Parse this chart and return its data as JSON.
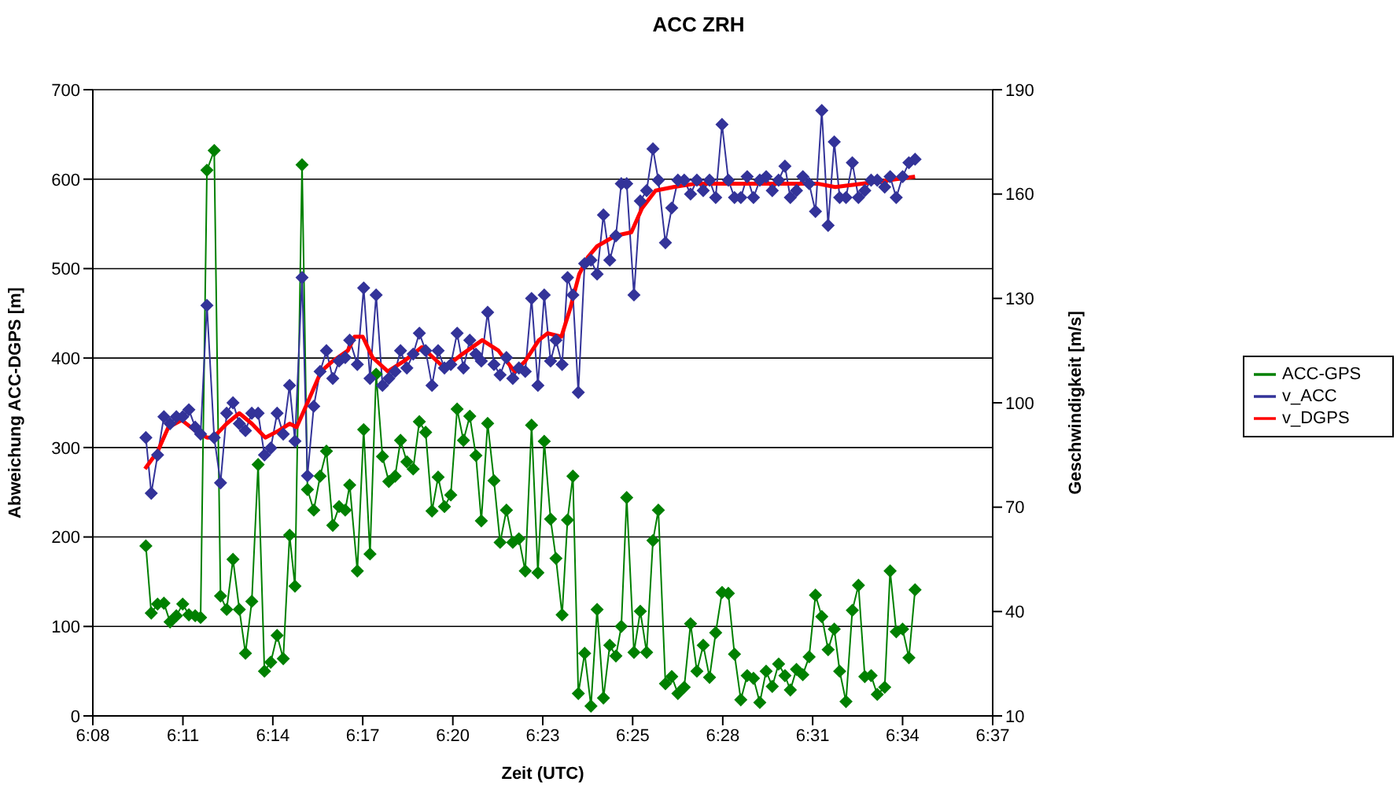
{
  "chart_data": {
    "type": "line",
    "title": "ACC ZRH",
    "xlabel": "Zeit (UTC)",
    "ylabel": "Abweichung ACC-DGPS [m]",
    "y2label": "Geschwindigkeit [m/s]",
    "x": [
      6.1618,
      6.1647,
      6.1681,
      6.1715,
      6.1748,
      6.1782,
      6.1816,
      6.1849,
      6.1883,
      6.1912,
      6.1946,
      6.1985,
      6.2019,
      6.2052,
      6.2086,
      6.212,
      6.2153,
      6.2187,
      6.2221,
      6.2255,
      6.2289,
      6.2323,
      6.2356,
      6.239,
      6.2419,
      6.2457,
      6.2486,
      6.252,
      6.2554,
      6.2588,
      6.2622,
      6.2656,
      6.2689,
      6.2713,
      6.2754,
      6.2788,
      6.2822,
      6.2855,
      6.2889,
      6.2923,
      6.2957,
      6.2986,
      6.302,
      6.3054,
      6.3087,
      6.3121,
      6.3155,
      6.3188,
      6.3222,
      6.3256,
      6.329,
      6.3324,
      6.3358,
      6.3391,
      6.342,
      6.3454,
      6.3488,
      6.3521,
      6.3555,
      6.3589,
      6.3622,
      6.3656,
      6.369,
      6.3724,
      6.3758,
      6.3792,
      6.3821,
      6.3854,
      6.3883,
      6.3912,
      6.3941,
      6.3975,
      6.4009,
      6.4042,
      6.4076,
      6.411,
      6.4143,
      6.4172,
      6.4201,
      6.424,
      6.4274,
      6.4308,
      6.4342,
      6.4371,
      6.4409,
      6.4443,
      6.4476,
      6.451,
      6.4544,
      6.4578,
      6.4612,
      6.4646,
      6.4679,
      6.4713,
      6.4747,
      6.478,
      6.4814,
      6.4848,
      6.4882,
      6.4916,
      6.495,
      6.4983,
      6.5017,
      6.5051,
      6.508,
      6.5113,
      6.5147,
      6.5181,
      6.5215,
      6.5249,
      6.5283,
      6.5316,
      6.5345,
      6.5379,
      6.5413,
      6.5446,
      6.548,
      6.5514,
      6.5547,
      6.5587,
      6.5616,
      6.5649,
      6.5683,
      6.5717,
      6.575
    ],
    "series": [
      {
        "name": "ACC-GPS",
        "color": "#008000",
        "marker": "diamond",
        "values": [
          190,
          115,
          125,
          126,
          105,
          112,
          125,
          113,
          112,
          110,
          610,
          632,
          134,
          119,
          175,
          119,
          70,
          128,
          281,
          50,
          60,
          90,
          64,
          202,
          145,
          616,
          253,
          230,
          268,
          296,
          213,
          234,
          230,
          258,
          162,
          320,
          181,
          382,
          290,
          262,
          268,
          308,
          284,
          276,
          329,
          317,
          229,
          267,
          234,
          247,
          343,
          308,
          335,
          291,
          218,
          327,
          263,
          194,
          230,
          194,
          198,
          162,
          325,
          160,
          307,
          220,
          176,
          113,
          219,
          268,
          25,
          70,
          11,
          119,
          20,
          79,
          67,
          100,
          244,
          71,
          117,
          71,
          196,
          230,
          36,
          44,
          25,
          32,
          103,
          50,
          79,
          43,
          93,
          138,
          137,
          69,
          18,
          45,
          42,
          15,
          50,
          33,
          58,
          45,
          29,
          52,
          46,
          66,
          135,
          111,
          74,
          97,
          50,
          16,
          118,
          146,
          44,
          45,
          24,
          32,
          162,
          94,
          97,
          65,
          141
        ]
      },
      {
        "name": "v_ACC",
        "axis": "y2",
        "color": "#333399",
        "marker": "diamond",
        "values": [
          90,
          74,
          85,
          96,
          94,
          96,
          96,
          98,
          93,
          91,
          128,
          90,
          77,
          97,
          100,
          94,
          92,
          97,
          97,
          85,
          87,
          97,
          91,
          105,
          89,
          136,
          79,
          99,
          109,
          115,
          107,
          112,
          113,
          118,
          111,
          133,
          107,
          131,
          105,
          107,
          109,
          115,
          110,
          114,
          120,
          115,
          105,
          115,
          110,
          111,
          120,
          110,
          118,
          114,
          112,
          126,
          111,
          108,
          113,
          107,
          110,
          109,
          130,
          105,
          131,
          112,
          118,
          111,
          136,
          131,
          103,
          140,
          141,
          137,
          154,
          141,
          148,
          163,
          163,
          131,
          158,
          161,
          173,
          164,
          146,
          156,
          164,
          164,
          160,
          164,
          161,
          164,
          159,
          180,
          164,
          159,
          159,
          165,
          159,
          164,
          165,
          161,
          164,
          168,
          159,
          161,
          165,
          163,
          155,
          184,
          151,
          175,
          159,
          159,
          169,
          159,
          161,
          164,
          164,
          162,
          165,
          159,
          165,
          169,
          170
        ]
      },
      {
        "name": "v_DGPS",
        "axis": "y2",
        "color": "#ff0000",
        "marker": "none",
        "x": [
          6.1613,
          6.1681,
          6.1739,
          6.1811,
          6.1883,
          6.1946,
          6.198,
          6.2052,
          6.212,
          6.2187,
          6.226,
          6.2332,
          6.239,
          6.2428,
          6.2486,
          6.2559,
          6.2622,
          6.2703,
          6.2739,
          6.2783,
          6.2836,
          6.2918,
          6.3005,
          6.3101,
          6.3222,
          6.3318,
          6.3425,
          6.3512,
          6.3599,
          6.3656,
          6.3729,
          6.3777,
          6.385,
          6.3897,
          6.3946,
          6.3994,
          6.4042,
          6.4139,
          6.4226,
          6.4284,
          6.4356,
          6.4452,
          6.4573,
          6.4766,
          6.4887,
          6.508,
          6.5225,
          6.5321,
          6.5466,
          6.561,
          6.575
        ],
        "values": [
          81,
          86,
          93,
          95,
          92,
          90,
          90,
          94,
          97,
          94,
          90,
          92,
          94,
          93,
          100,
          109,
          112,
          115,
          119,
          119,
          113,
          109,
          112,
          116,
          110,
          114,
          118,
          115,
          109,
          112,
          118,
          120,
          119,
          127,
          137,
          142,
          145,
          148,
          149,
          156,
          161,
          162,
          163,
          163,
          163,
          163,
          163,
          162,
          163,
          164,
          165
        ]
      }
    ],
    "xlim": [
      6.1333,
      6.6167
    ],
    "xticks": [
      {
        "value": 6.1333,
        "label": "6:08"
      },
      {
        "value": 6.1817,
        "label": "6:11"
      },
      {
        "value": 6.23,
        "label": "6:14"
      },
      {
        "value": 6.2783,
        "label": "6:17"
      },
      {
        "value": 6.3267,
        "label": "6:20"
      },
      {
        "value": 6.375,
        "label": "6:23"
      },
      {
        "value": 6.4233,
        "label": "6:25"
      },
      {
        "value": 6.4717,
        "label": "6:28"
      },
      {
        "value": 6.52,
        "label": "6:31"
      },
      {
        "value": 6.5683,
        "label": "6:34"
      },
      {
        "value": 6.6167,
        "label": "6:37"
      }
    ],
    "ylim": [
      0,
      700
    ],
    "yticks": [
      0,
      100,
      200,
      300,
      400,
      500,
      600,
      700
    ],
    "y2lim": [
      10,
      190
    ],
    "y2ticks": [
      10,
      40,
      70,
      100,
      130,
      160,
      190
    ],
    "grid": "y",
    "legend": "right"
  }
}
